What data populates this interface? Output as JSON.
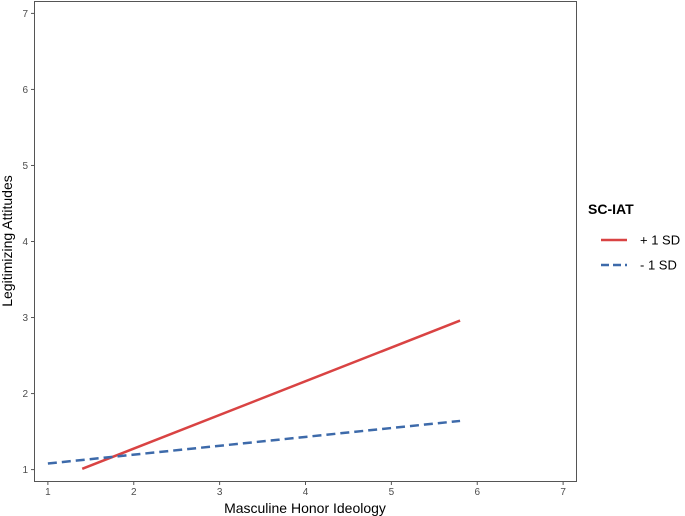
{
  "chart_data": {
    "type": "line",
    "title": "",
    "xlabel": "Masculine Honor Ideology",
    "ylabel": "Legitimizing Attitudes",
    "xlim": [
      0.85,
      7.15
    ],
    "ylim": [
      0.85,
      7.15
    ],
    "xticks": [
      1,
      2,
      3,
      4,
      5,
      6,
      7
    ],
    "yticks": [
      1,
      2,
      3,
      4,
      5,
      6,
      7
    ],
    "grid": false,
    "legend": {
      "title": "SC-IAT",
      "placement": "right"
    },
    "series": [
      {
        "name": "+ 1 SD",
        "color": "#d94343",
        "dash": "solid",
        "x": [
          1.4,
          5.8
        ],
        "y": [
          1.01,
          2.96
        ]
      },
      {
        "name": "- 1 SD",
        "color": "#3d6aaa",
        "dash": "dashed",
        "x": [
          1.0,
          5.8
        ],
        "y": [
          1.08,
          1.64
        ]
      }
    ]
  }
}
